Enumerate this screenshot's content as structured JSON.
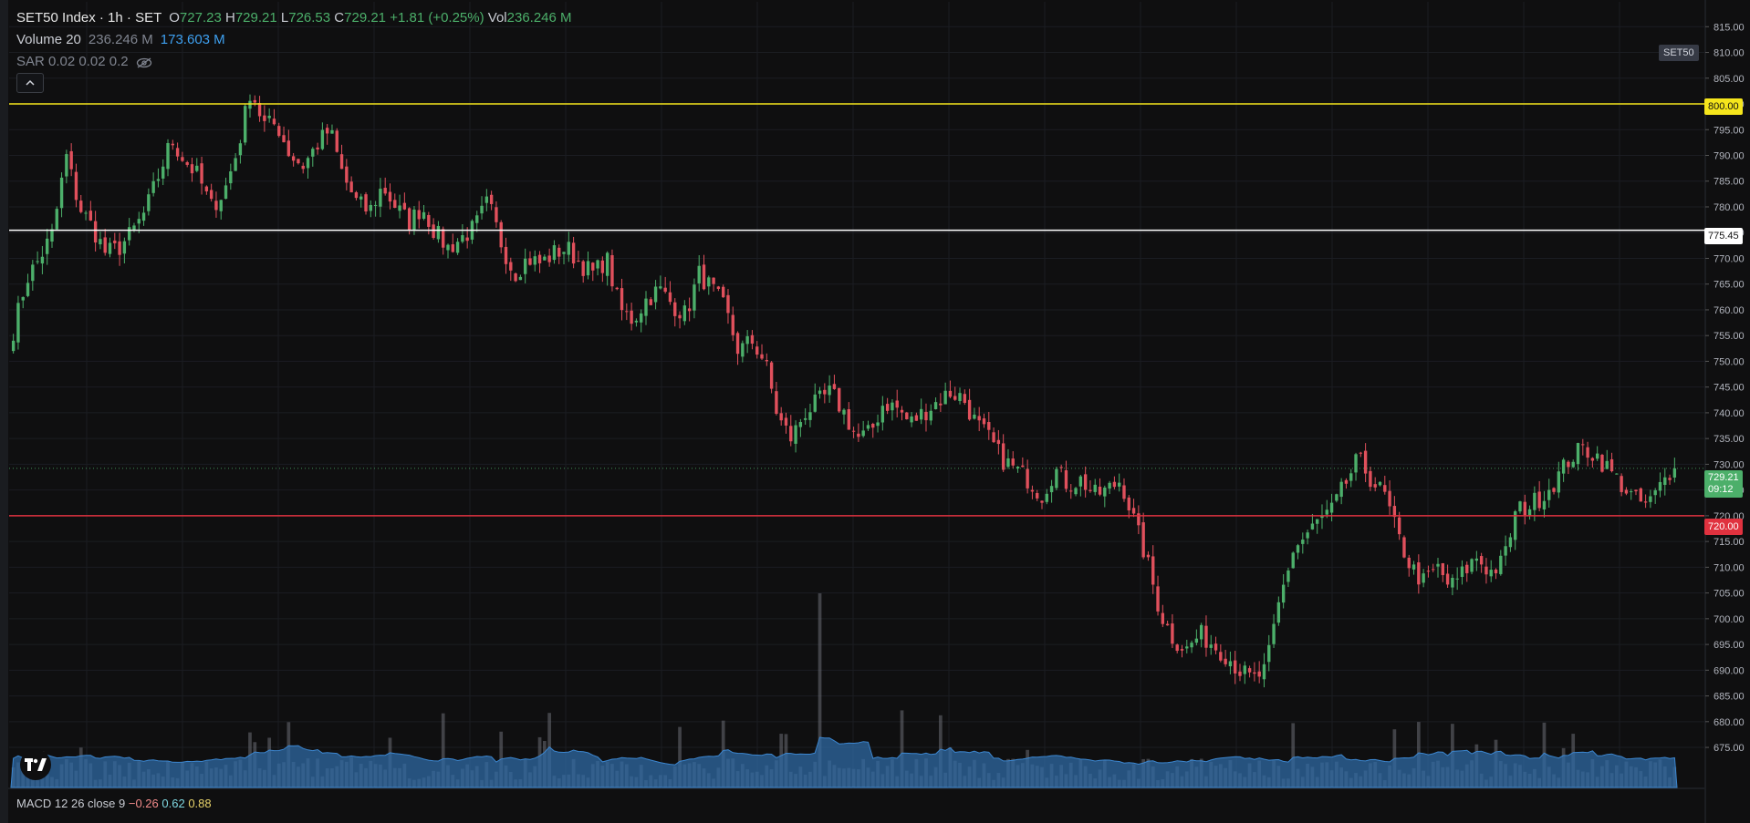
{
  "legend": {
    "symbol": "SET50 Index · 1h · SET",
    "o_label": "O",
    "o_val": "727.23",
    "h_label": "H",
    "h_val": "729.21",
    "l_label": "L",
    "l_val": "726.53",
    "c_label": "C",
    "c_val": "729.21",
    "change": "+1.81 (+0.25%)",
    "vol_label": "Vol",
    "vol_val": "236.246 M",
    "volume_label": "Volume 20",
    "volume_val1": "236.246 M",
    "volume_val2": "173.603 M",
    "sar_label": "SAR 0.02 0.02 0.2"
  },
  "macd": {
    "label": "MACD 12 26 close 9",
    "v1": "−0.26",
    "v2": "0.62",
    "v3": "0.88"
  },
  "symbol_badge": "SET50",
  "price_tags": {
    "yellow": "800.00",
    "white": "775.45",
    "current": "729.21",
    "countdown": "09:12",
    "red": "720.00"
  },
  "icons": {
    "logo": "tradingview-logo-icon",
    "eye": "eye-hidden-icon",
    "collapse": "chevron-up-icon"
  },
  "colors": {
    "background": "#0f0f10",
    "up": "#4caf6a",
    "down": "#e0505c",
    "volume_ma": "#2f6aa3",
    "yellow_line": "#f5e51c",
    "white_line": "#ffffff",
    "red_line": "#e0323f",
    "current": "#4caf6a"
  },
  "chart_data": {
    "type": "candlestick",
    "y_ticks": [
      "815.00",
      "810.00",
      "805.00",
      "800.00",
      "795.00",
      "790.00",
      "785.00",
      "780.00",
      "775.00",
      "770.00",
      "765.00",
      "760.00",
      "755.00",
      "750.00",
      "745.00",
      "740.00",
      "735.00",
      "730.00",
      "725.00",
      "720.00",
      "715.00",
      "710.00",
      "705.00",
      "700.00",
      "695.00",
      "690.00",
      "685.00",
      "680.00",
      "675.00"
    ],
    "ylim": [
      672,
      817
    ],
    "horizontal_lines": [
      {
        "value": 800.0,
        "color": "#f5e51c"
      },
      {
        "value": 775.45,
        "color": "#ffffff"
      },
      {
        "value": 720.0,
        "color": "#e0323f"
      },
      {
        "value": 729.21,
        "color": "#4caf6a",
        "dotted": true
      }
    ],
    "price_path": [
      756,
      766,
      770,
      775,
      790,
      780,
      776,
      771,
      772,
      775,
      779,
      786,
      793,
      789,
      786,
      780,
      783,
      791,
      803,
      796,
      796,
      790,
      788,
      792,
      795,
      786,
      781,
      779,
      784,
      780,
      777,
      780,
      775,
      772,
      774,
      776,
      781,
      773,
      767,
      770,
      769,
      771,
      772,
      769,
      767,
      770,
      760,
      758,
      762,
      764,
      761,
      759,
      767,
      764,
      760,
      752,
      754,
      750,
      739,
      735,
      740,
      742,
      744,
      740,
      735,
      736,
      742,
      741,
      738,
      740,
      742,
      744,
      743,
      738,
      735,
      731,
      729,
      727,
      724,
      729,
      726,
      727,
      724,
      725,
      727,
      719,
      711,
      701,
      696,
      694,
      697,
      695,
      693,
      690,
      688,
      690,
      703,
      713,
      716,
      719,
      721,
      726,
      731,
      727,
      724,
      716,
      710,
      707,
      710,
      706,
      709,
      712,
      709,
      711,
      721,
      722,
      724,
      727,
      731,
      733,
      732,
      729,
      726,
      723,
      722,
      726,
      730
    ],
    "volume_base": 12
  }
}
